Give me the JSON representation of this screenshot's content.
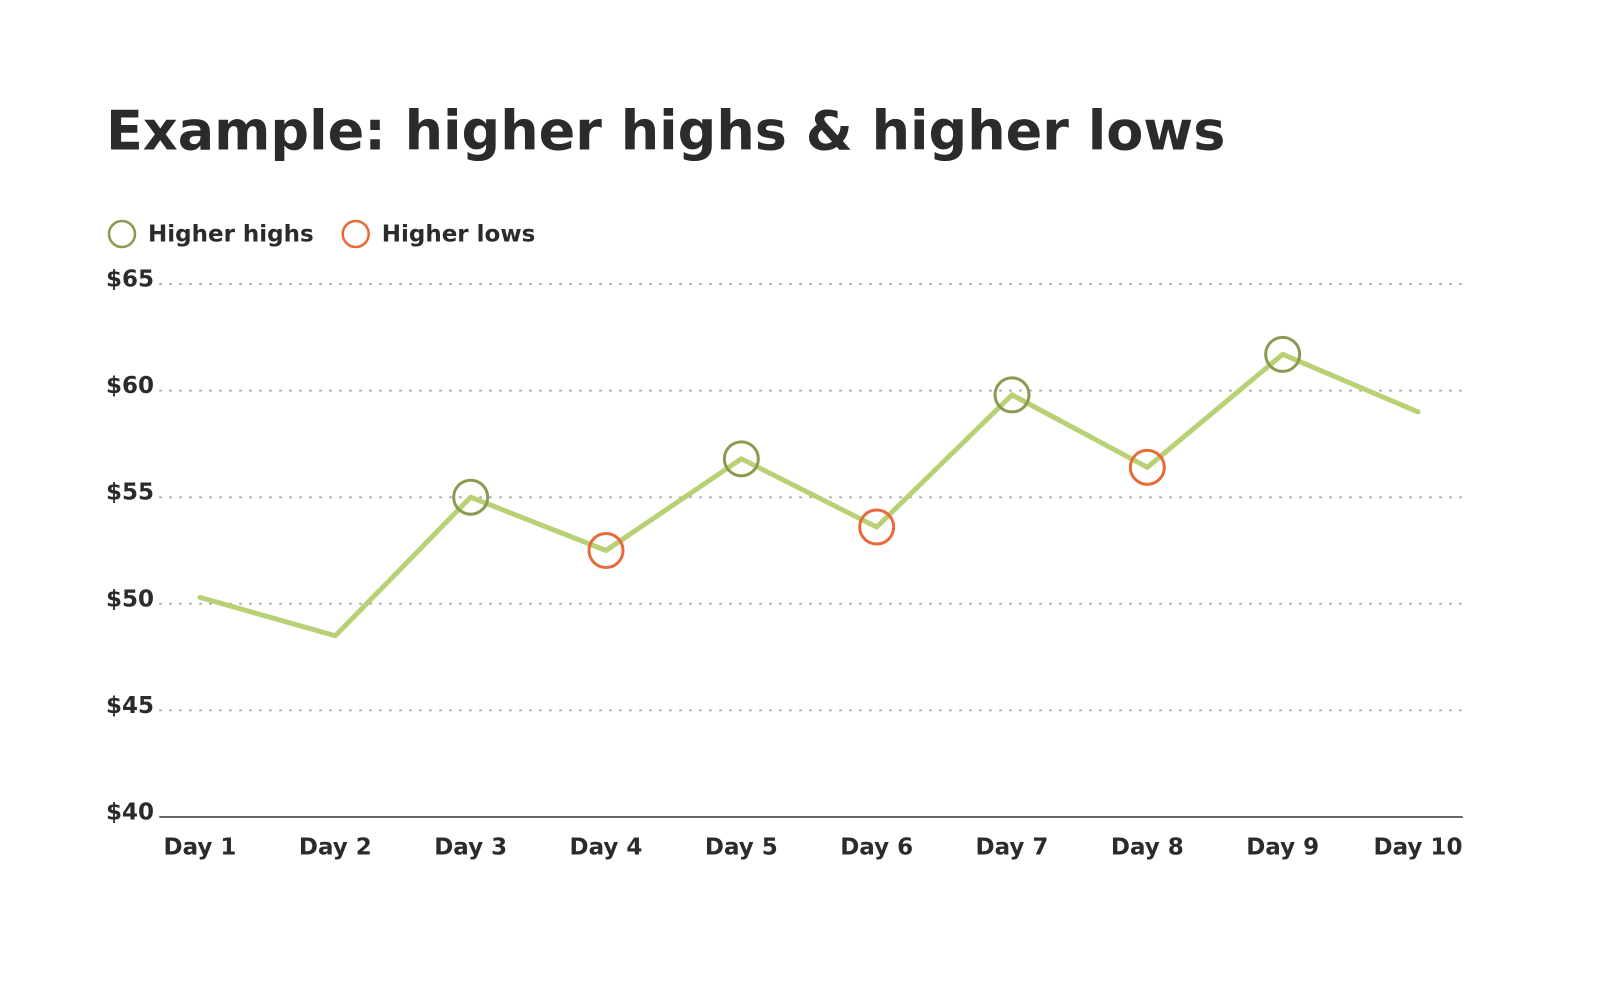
{
  "chart_data": {
    "type": "line",
    "title": "Example: higher highs & higher lows",
    "categories": [
      "Day 1",
      "Day 2",
      "Day 3",
      "Day 4",
      "Day 5",
      "Day 6",
      "Day 7",
      "Day 8",
      "Day 9",
      "Day 10"
    ],
    "values": [
      50.3,
      48.5,
      55.0,
      52.5,
      56.8,
      53.6,
      59.8,
      56.4,
      61.7,
      59.0
    ],
    "color": "#b8d175",
    "series": [
      {
        "name": "Higher highs",
        "color": "#8a9a4e",
        "values": [
          null,
          null,
          55.0,
          null,
          56.8,
          null,
          59.8,
          null,
          61.7,
          null
        ]
      },
      {
        "name": "Higher lows",
        "color": "#e86a38",
        "values": [
          null,
          null,
          null,
          52.5,
          null,
          53.6,
          null,
          56.4,
          null,
          null
        ]
      }
    ],
    "ylim": [
      40,
      65
    ],
    "yticks": [
      {
        "value": 40,
        "label": "$40"
      },
      {
        "value": 45,
        "label": "$45"
      },
      {
        "value": 50,
        "label": "$50"
      },
      {
        "value": 55,
        "label": "$55"
      },
      {
        "value": 60,
        "label": "$60"
      },
      {
        "value": 65,
        "label": "$65"
      }
    ],
    "grid": true
  }
}
